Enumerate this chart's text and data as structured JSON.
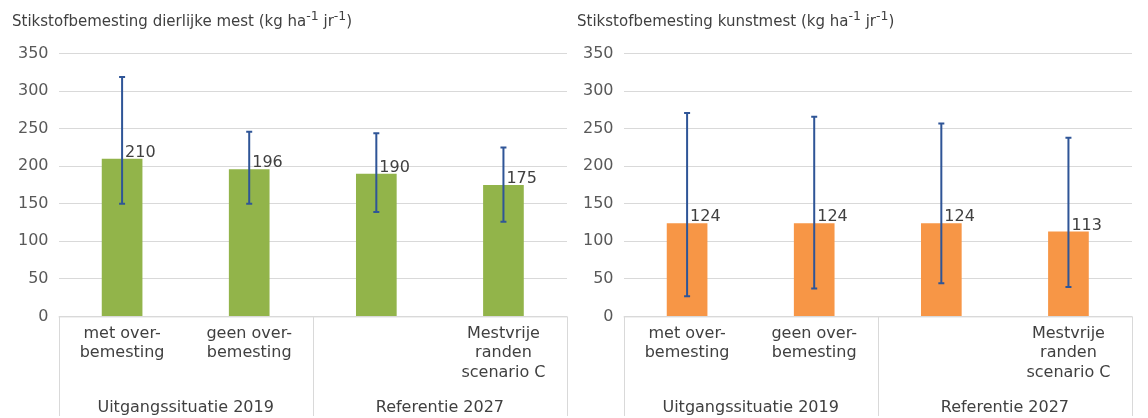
{
  "chart_data": [
    {
      "type": "bar",
      "title": "Stikstofbemesting dierlijke  mest (kg ha$^{-1}$ jr$^{-1}$)",
      "categories": [
        "met over-\nbemesting",
        "geen over-\nbemesting",
        null,
        "Mestvrije\nranden\nscenario C"
      ],
      "values": [
        210,
        196,
        190,
        175
      ],
      "color": "#92b44a",
      "errors": [
        [
          150,
          319
        ],
        [
          150,
          246
        ],
        [
          139,
          244
        ],
        [
          126,
          225
        ]
      ],
      "ylim": [
        0,
        350
      ],
      "yticks": [
        0,
        50,
        100,
        150,
        200,
        250,
        300,
        350
      ],
      "grid": "y",
      "data_labels": true,
      "legend": false,
      "annotations": [
        "Uitgangssituatie 2019",
        "Referentie 2027"
      ]
    },
    {
      "type": "bar",
      "title": "Stikstofbemesting kunstmest (kg ha$^{-1}$ jr$^{-1}$)",
      "categories": [
        "met over-\nbemesting",
        "geen over-\nbemesting",
        null,
        "Mestvrije\nranden\nscenario C"
      ],
      "values": [
        124,
        124,
        124,
        113
      ],
      "color": "#f79646",
      "errors": [
        [
          27,
          271
        ],
        [
          37,
          266
        ],
        [
          44,
          257
        ],
        [
          39,
          238
        ]
      ],
      "ylim": [
        0,
        350
      ],
      "yticks": [
        0,
        50,
        100,
        150,
        200,
        250,
        300,
        350
      ],
      "grid": "y",
      "data_labels": true,
      "legend": false,
      "annotations": [
        "Uitgangssituatie 2019",
        "Referentie 2027"
      ]
    }
  ]
}
